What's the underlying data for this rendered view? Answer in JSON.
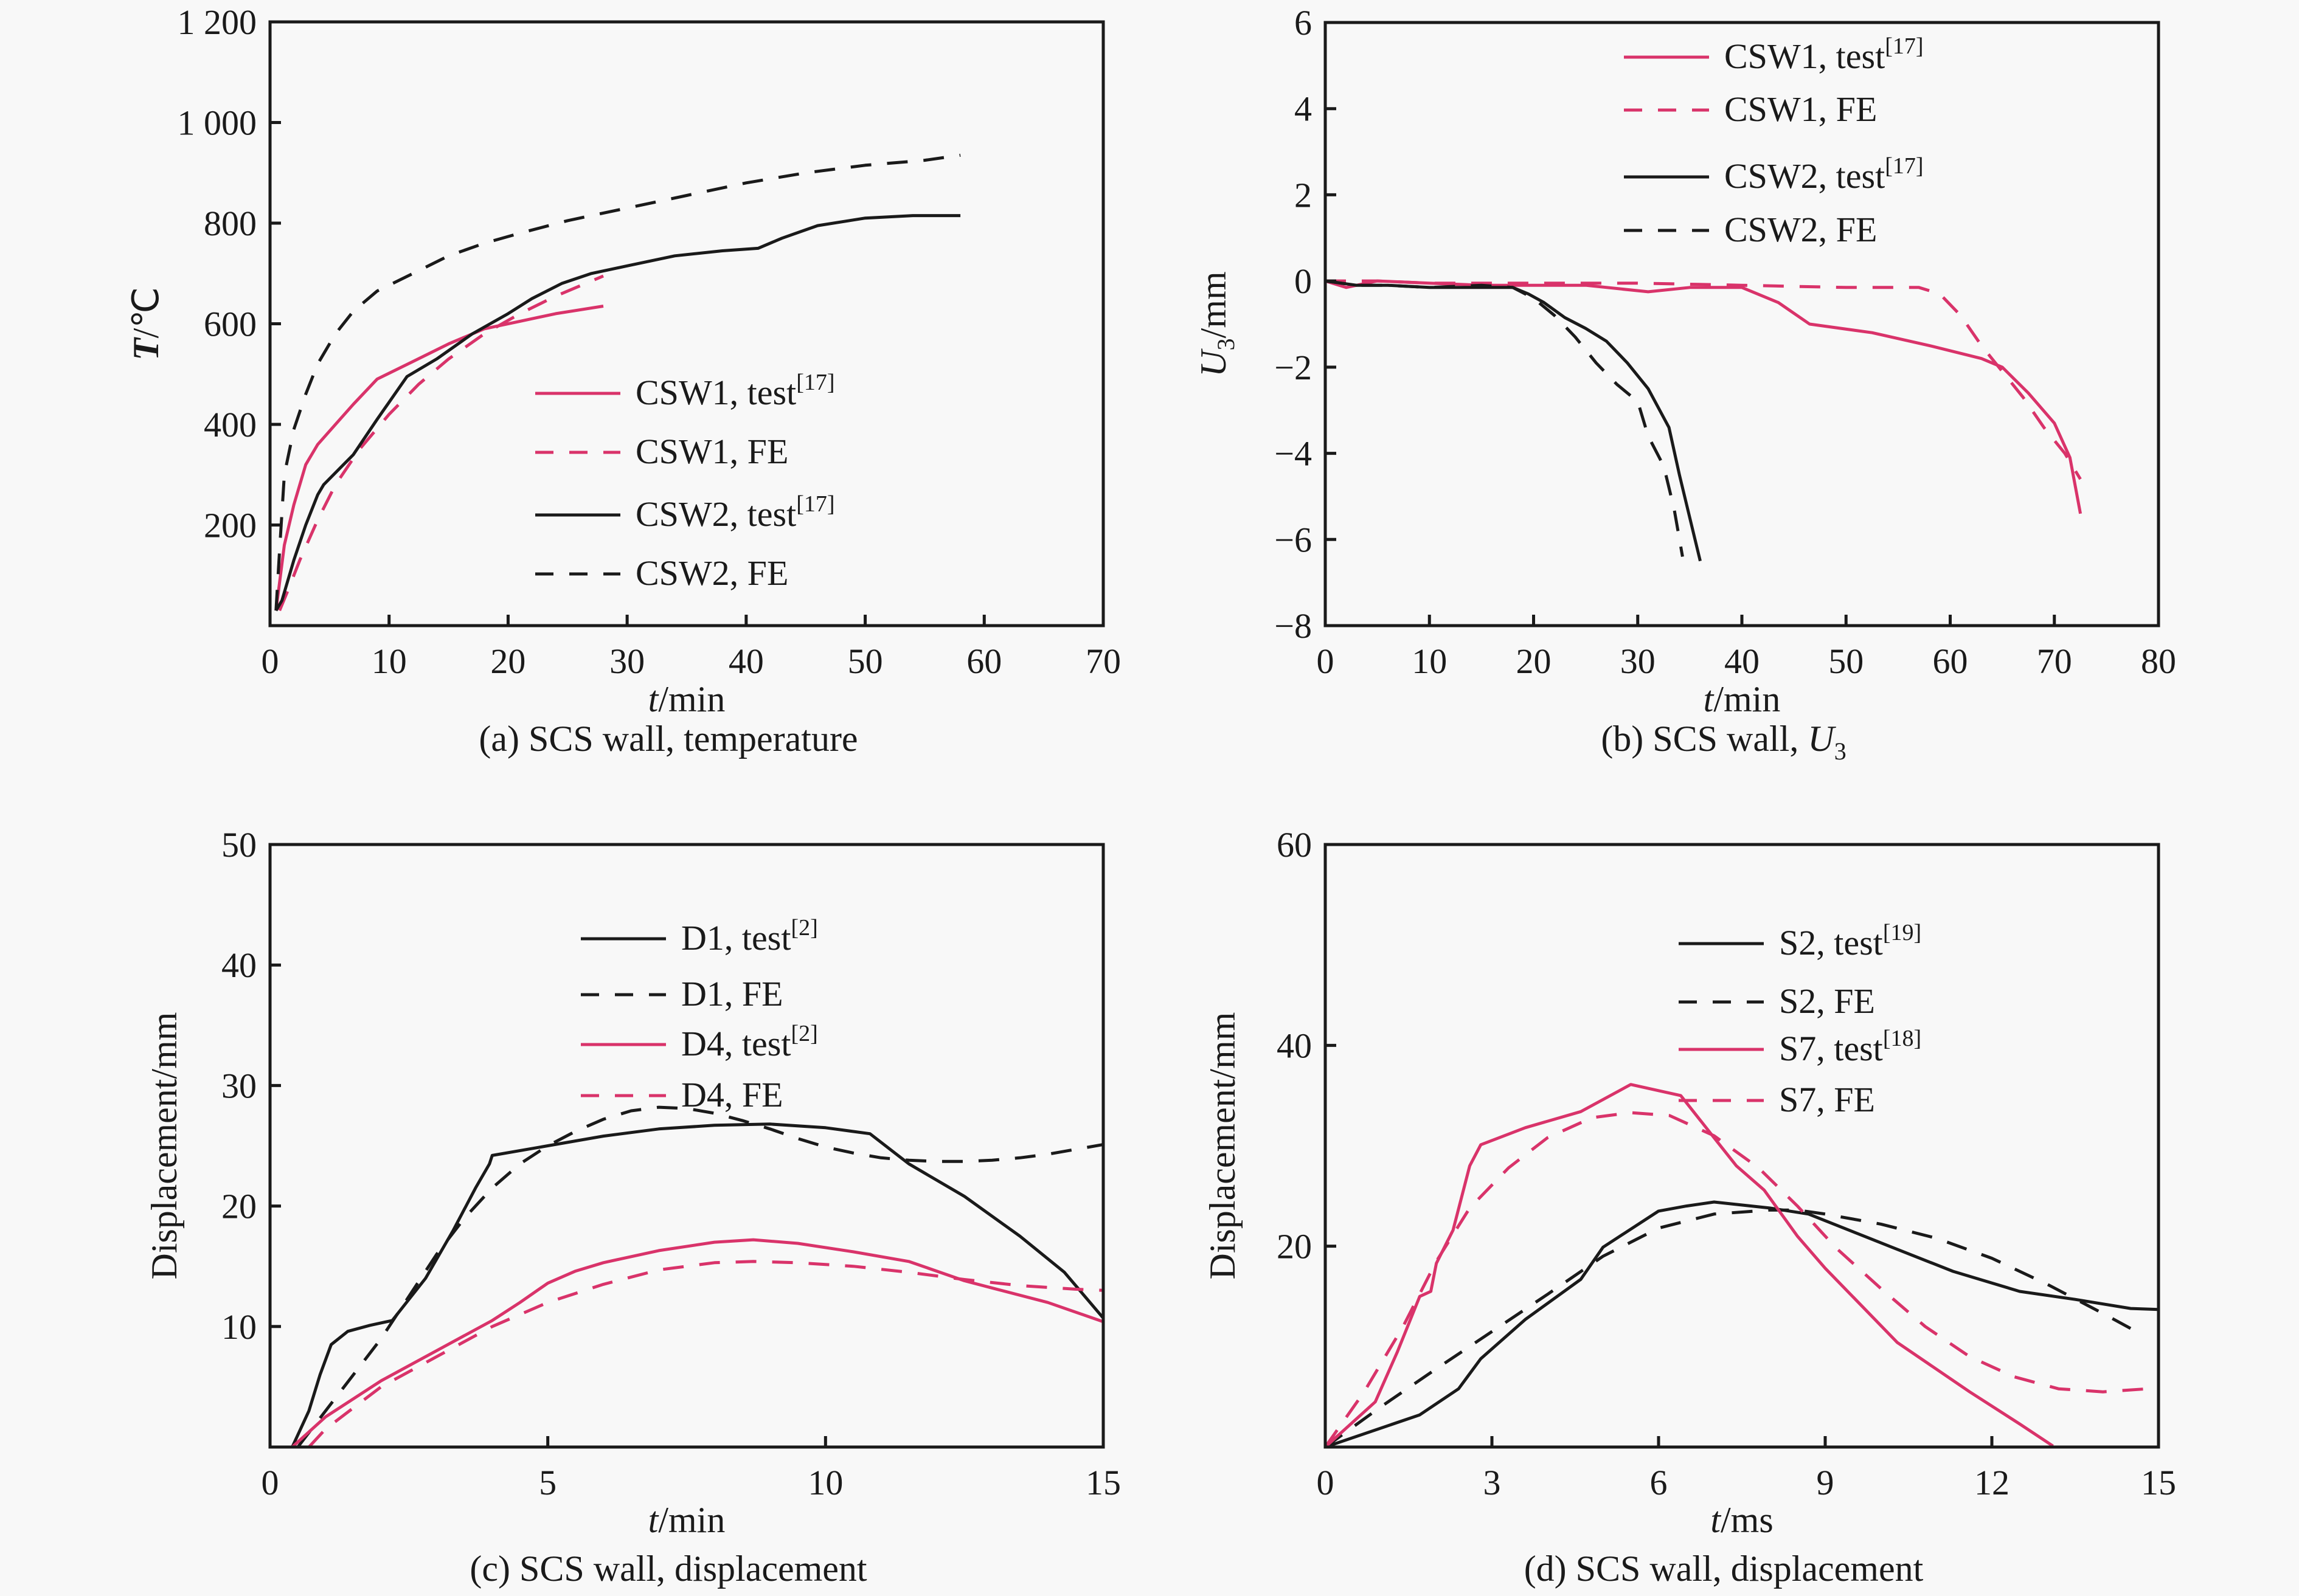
{
  "colors": {
    "test_red": "#d9336a",
    "black": "#1a1a1a",
    "background": "#f8f8f8"
  },
  "chart_data": [
    {
      "id": "a",
      "type": "line",
      "title": "",
      "caption": "(a) SCS wall, temperature",
      "xlabel": {
        "italic": "t",
        "rest": "/min"
      },
      "ylabel": {
        "italic": "T",
        "rest": "/℃"
      },
      "xlim": [
        0,
        70
      ],
      "ylim": [
        0,
        1200
      ],
      "xticks": [
        0,
        10,
        20,
        30,
        40,
        50,
        60,
        70
      ],
      "xtick_labels": [
        "0",
        "10",
        "20",
        "30",
        "40",
        "50",
        "60",
        "70"
      ],
      "yticks": [
        200,
        400,
        600,
        800,
        1000,
        1200
      ],
      "ytick_labels": [
        "200",
        "400",
        "600",
        "800",
        "1 000",
        "1 200"
      ],
      "grid": false,
      "legend_position": "lower-right",
      "series": [
        {
          "name": "CSW1, test",
          "ref": "[17]",
          "color": "#d9336a",
          "style": "solid",
          "x": [
            0.5,
            1.2,
            2,
            3,
            4,
            5.5,
            7,
            9,
            12,
            15,
            18,
            21,
            24,
            28
          ],
          "y": [
            30,
            160,
            240,
            320,
            360,
            400,
            440,
            490,
            525,
            560,
            590,
            605,
            620,
            635
          ]
        },
        {
          "name": "CSW1, FE",
          "ref": "",
          "color": "#d9336a",
          "style": "dashed",
          "x": [
            0.8,
            1.5,
            2.5,
            4,
            5.5,
            7.5,
            10,
            12.5,
            15,
            18,
            21,
            24,
            28
          ],
          "y": [
            30,
            70,
            130,
            210,
            280,
            350,
            420,
            480,
            530,
            580,
            620,
            655,
            695
          ]
        },
        {
          "name": "CSW2, test",
          "ref": "[17]",
          "color": "#1a1a1a",
          "style": "solid",
          "x": [
            0.5,
            1,
            2,
            3,
            4,
            4.5,
            7,
            9,
            11.5,
            14,
            17,
            20,
            22,
            24.5,
            27,
            30,
            34,
            38,
            41,
            43,
            46,
            50,
            54,
            58
          ],
          "y": [
            30,
            50,
            130,
            200,
            260,
            280,
            340,
            410,
            495,
            530,
            580,
            620,
            650,
            680,
            700,
            715,
            735,
            745,
            750,
            770,
            795,
            810,
            815,
            815
          ]
        },
        {
          "name": "CSW2, FE",
          "ref": "",
          "color": "#1a1a1a",
          "style": "dashed",
          "x": [
            0.5,
            0.8,
            1.2,
            2,
            3,
            4,
            5.5,
            7,
            9,
            12,
            15,
            18,
            21,
            25,
            30,
            35,
            40,
            45,
            50,
            55,
            58
          ],
          "y": [
            30,
            150,
            300,
            390,
            460,
            520,
            580,
            625,
            665,
            700,
            735,
            760,
            780,
            805,
            830,
            855,
            880,
            900,
            915,
            925,
            935
          ]
        }
      ]
    },
    {
      "id": "b",
      "type": "line",
      "title": "",
      "caption": {
        "prefix": "(b) SCS wall, ",
        "italic": "U",
        "sub": "3"
      },
      "xlabel": {
        "italic": "t",
        "rest": "/min"
      },
      "ylabel": {
        "italic": "U",
        "sub": "3",
        "rest": "/mm"
      },
      "xlim": [
        0,
        80
      ],
      "ylim": [
        -8,
        6
      ],
      "xticks": [
        0,
        10,
        20,
        30,
        40,
        50,
        60,
        70,
        80
      ],
      "xtick_labels": [
        "0",
        "10",
        "20",
        "30",
        "40",
        "50",
        "60",
        "70",
        "80"
      ],
      "yticks": [
        -8,
        -6,
        -4,
        -2,
        0,
        2,
        4,
        6
      ],
      "ytick_labels": [
        "−8",
        "−6",
        "−4",
        "−2",
        "0",
        "2",
        "4",
        "6"
      ],
      "grid": false,
      "legend_position": "top-right",
      "series": [
        {
          "name": "CSW1, test",
          "ref": "[17]",
          "color": "#d9336a",
          "style": "solid",
          "x": [
            0,
            2,
            5,
            10,
            15,
            20,
            25,
            31,
            35,
            40,
            43.5,
            46.5,
            52.5,
            58,
            63,
            65,
            67.5,
            70,
            71.5,
            72.5
          ],
          "y": [
            0,
            -0.15,
            0,
            -0.05,
            -0.1,
            -0.1,
            -0.1,
            -0.25,
            -0.15,
            -0.15,
            -0.5,
            -1.0,
            -1.2,
            -1.5,
            -1.8,
            -2.0,
            -2.6,
            -3.3,
            -4.1,
            -5.4
          ]
        },
        {
          "name": "CSW1, FE",
          "ref": "",
          "color": "#d9336a",
          "style": "dashed",
          "x": [
            0,
            5,
            10,
            20,
            30,
            40,
            50,
            57,
            59,
            61,
            63,
            65,
            67,
            69,
            71,
            72.5
          ],
          "y": [
            0,
            0,
            -0.05,
            -0.05,
            -0.05,
            -0.1,
            -0.15,
            -0.15,
            -0.3,
            -0.8,
            -1.5,
            -2.1,
            -2.7,
            -3.4,
            -4.0,
            -4.6
          ]
        },
        {
          "name": "CSW2, test",
          "ref": "[17]",
          "color": "#1a1a1a",
          "style": "solid",
          "x": [
            0,
            3,
            6,
            10,
            15,
            18,
            19.5,
            21,
            23,
            25,
            27,
            29,
            31,
            33,
            34,
            35,
            36
          ],
          "y": [
            0,
            -0.1,
            -0.1,
            -0.15,
            -0.15,
            -0.15,
            -0.3,
            -0.5,
            -0.85,
            -1.1,
            -1.4,
            -1.9,
            -2.5,
            -3.4,
            -4.5,
            -5.5,
            -6.5
          ]
        },
        {
          "name": "CSW2, FE",
          "ref": "",
          "color": "#1a1a1a",
          "style": "dashed",
          "x": [
            0,
            3,
            6,
            10,
            15,
            18,
            20,
            22,
            24,
            26,
            28,
            30,
            31,
            32.5,
            33.5,
            34.3
          ],
          "y": [
            0,
            -0.1,
            -0.1,
            -0.15,
            -0.1,
            -0.15,
            -0.4,
            -0.8,
            -1.3,
            -1.9,
            -2.4,
            -2.8,
            -3.6,
            -4.3,
            -5.3,
            -6.4
          ]
        }
      ]
    },
    {
      "id": "c",
      "type": "line",
      "title": "",
      "caption": "(c) SCS wall, displacement",
      "xlabel": {
        "italic": "t",
        "rest": "/min"
      },
      "ylabel": {
        "italic": "",
        "rest": "Displacement/mm"
      },
      "xlim": [
        0,
        15
      ],
      "ylim": [
        0,
        50
      ],
      "xticks": [
        0,
        5,
        10,
        15
      ],
      "xtick_labels": [
        "0",
        "5",
        "10",
        "15"
      ],
      "yticks": [
        10,
        20,
        30,
        40,
        50
      ],
      "ytick_labels": [
        "10",
        "20",
        "30",
        "40",
        "50"
      ],
      "grid": false,
      "legend_position": "top-right",
      "series": [
        {
          "name": "D1, test",
          "ref": "[2]",
          "color": "#1a1a1a",
          "style": "solid",
          "x": [
            0.4,
            0.7,
            0.9,
            1.1,
            1.4,
            1.8,
            2.2,
            2.8,
            3.3,
            3.7,
            3.95,
            4.0,
            5,
            6,
            7,
            8,
            9,
            10,
            10.8,
            11.5,
            12.5,
            13.5,
            14.3,
            15
          ],
          "y": [
            0,
            3,
            6,
            8.5,
            9.6,
            10.1,
            10.5,
            14,
            18,
            21.5,
            23.5,
            24.2,
            25,
            25.8,
            26.4,
            26.7,
            26.8,
            26.5,
            26.0,
            23.5,
            20.8,
            17.5,
            14.5,
            10.7
          ]
        },
        {
          "name": "D1, FE",
          "ref": "",
          "color": "#1a1a1a",
          "style": "dashed",
          "x": [
            0.5,
            1,
            1.5,
            2,
            2.5,
            3,
            3.5,
            4,
            4.5,
            5,
            5.5,
            6,
            6.5,
            7,
            7.5,
            8,
            8.5,
            9,
            9.5,
            10,
            10.5,
            11,
            11.5,
            12,
            12.5,
            13,
            13.5,
            14,
            14.5,
            15
          ],
          "y": [
            0,
            3,
            6,
            9,
            12.5,
            16,
            19,
            21.5,
            23.5,
            25,
            26.2,
            27.2,
            27.9,
            28.2,
            28.1,
            27.7,
            27.1,
            26.4,
            25.6,
            24.9,
            24.4,
            24.0,
            23.8,
            23.7,
            23.7,
            23.8,
            24.0,
            24.3,
            24.7,
            25.1
          ]
        },
        {
          "name": "D4, test",
          "ref": "[2]",
          "color": "#d9336a",
          "style": "solid",
          "x": [
            0.4,
            1,
            2,
            3,
            4,
            4.5,
            5,
            5.5,
            6,
            7,
            8,
            8.7,
            9.5,
            10.5,
            11.5,
            12,
            12.5,
            13,
            14,
            15
          ],
          "y": [
            0,
            2.5,
            5.5,
            8,
            10.5,
            12,
            13.6,
            14.6,
            15.3,
            16.3,
            17.0,
            17.2,
            16.9,
            16.2,
            15.4,
            14.6,
            13.8,
            13.2,
            12.0,
            10.4
          ]
        },
        {
          "name": "D4, FE",
          "ref": "",
          "color": "#d9336a",
          "style": "dashed",
          "x": [
            0.7,
            1,
            2,
            3,
            4,
            5,
            6,
            7,
            8,
            8.7,
            9.5,
            10.5,
            11.5,
            12.5,
            13.5,
            14.5,
            15
          ],
          "y": [
            0,
            1.5,
            5,
            7.5,
            10,
            12,
            13.5,
            14.7,
            15.3,
            15.4,
            15.3,
            15.0,
            14.5,
            13.9,
            13.4,
            13.1,
            13.0
          ]
        }
      ]
    },
    {
      "id": "d",
      "type": "line",
      "title": "",
      "caption": "(d) SCS wall, displacement",
      "xlabel": {
        "italic": "t",
        "rest": "/ms"
      },
      "ylabel": {
        "italic": "",
        "rest": "Displacement/mm"
      },
      "xlim": [
        0,
        15
      ],
      "ylim": [
        0,
        60
      ],
      "xticks": [
        0,
        3,
        6,
        9,
        12,
        15
      ],
      "xtick_labels": [
        "0",
        "3",
        "6",
        "9",
        "12",
        "15"
      ],
      "yticks": [
        20,
        40,
        60
      ],
      "ytick_labels": [
        "20",
        "40",
        "60"
      ],
      "grid": false,
      "legend_position": "top-right",
      "series": [
        {
          "name": "S2, test",
          "ref": "[19]",
          "color": "#1a1a1a",
          "style": "solid",
          "x": [
            0,
            1.7,
            2.4,
            2.8,
            3.6,
            4.6,
            5.0,
            6.0,
            6.5,
            7.0,
            8.0,
            8.7,
            10.2,
            11.3,
            12.5,
            13.5,
            14.5,
            15
          ],
          "y": [
            0,
            3.2,
            5.8,
            8.8,
            12.7,
            16.7,
            19.9,
            23.5,
            24.0,
            24.4,
            23.8,
            23.2,
            19.9,
            17.5,
            15.5,
            14.7,
            13.8,
            13.7
          ]
        },
        {
          "name": "S2, FE",
          "ref": "",
          "color": "#1a1a1a",
          "style": "dashed",
          "x": [
            0,
            1,
            2,
            3,
            4,
            5,
            6,
            7,
            8,
            8.5,
            9,
            10,
            11,
            12,
            13,
            14,
            14.7
          ],
          "y": [
            0,
            4,
            7.8,
            11.5,
            15.2,
            19.0,
            21.8,
            23.2,
            23.6,
            23.6,
            23.2,
            22.2,
            20.8,
            18.8,
            16.2,
            13.3,
            11.2
          ]
        },
        {
          "name": "S7, test",
          "ref": "[18]",
          "color": "#d9336a",
          "style": "solid",
          "x": [
            0,
            0.9,
            1.3,
            1.7,
            1.9,
            2.0,
            2.3,
            2.6,
            2.8,
            3.6,
            4.6,
            5.5,
            6.4,
            7.0,
            7.4,
            7.9,
            8.5,
            9.0,
            10.3,
            11.6,
            12.5,
            13.1
          ],
          "y": [
            0,
            4.5,
            9.5,
            15.0,
            15.5,
            18.3,
            21.6,
            28.0,
            30.1,
            31.8,
            33.4,
            36.1,
            35.0,
            30.8,
            28.0,
            25.6,
            21.0,
            17.8,
            10.4,
            5.5,
            2.3,
            0.1
          ]
        },
        {
          "name": "S7, FE",
          "ref": "",
          "color": "#d9336a",
          "style": "dashed",
          "x": [
            0,
            0.7,
            1.4,
            2.0,
            2.6,
            3.3,
            4.0,
            4.8,
            5.5,
            6.2,
            7.0,
            7.8,
            8.5,
            9.2,
            10.0,
            10.8,
            11.6,
            12.4,
            13.2,
            14.0,
            14.8
          ],
          "y": [
            0,
            5.5,
            12.0,
            18.5,
            23.8,
            27.8,
            30.8,
            32.8,
            33.3,
            33.0,
            31.0,
            27.8,
            24.0,
            19.8,
            15.8,
            12.0,
            9.0,
            7.0,
            5.8,
            5.5,
            5.8
          ]
        }
      ]
    }
  ]
}
